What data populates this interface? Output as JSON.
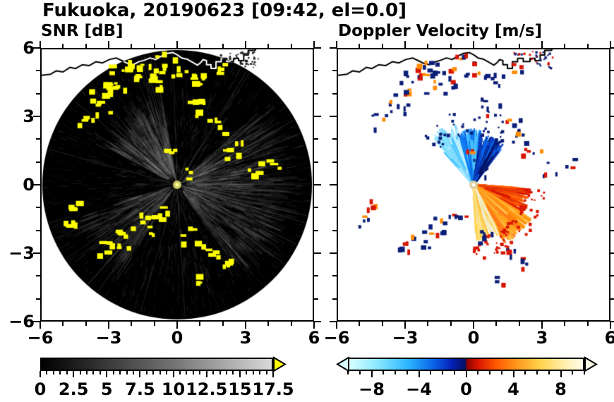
{
  "title": "Fukuoka, 20190623 [09:42, el=0.0]",
  "chart_data": {
    "type": "heatmap",
    "subtype": "dual-panel weather radar PPI",
    "site": "Fukuoka",
    "date": "20190623",
    "time": "09:42",
    "elevation": "el=0.0",
    "axes": {
      "xlim": [
        -6,
        6
      ],
      "ylim": [
        -6,
        6
      ],
      "xticks": [
        -6,
        -3,
        0,
        3,
        6
      ],
      "yticks": [
        -6,
        -3,
        0,
        3,
        6
      ],
      "tick_labels": [
        "−6",
        "−3",
        "0",
        "3",
        "6"
      ],
      "minor_tick_step": 1,
      "grid": false
    },
    "panels": [
      {
        "name": "snr",
        "title": "SNR [dB]",
        "style": "black disk of radius 6 centered on radar, grayscale noise texture, yellow blobs mark strong echoes, white coastline overlay",
        "colorbar": {
          "min": 0,
          "max": 17.5,
          "minor_step": 0.5,
          "tick_values": [
            0,
            2.5,
            5,
            7.5,
            10,
            12.5,
            15,
            17.5
          ],
          "tick_labels": [
            "0",
            "2.5",
            "5",
            "7.5",
            "10",
            "12.5",
            "15",
            "17.5"
          ],
          "stops": [
            {
              "pos": 0,
              "color": "#000000"
            },
            {
              "pos": 55,
              "color": "#6e6e6e"
            },
            {
              "pos": 100,
              "color": "#d9d9d9"
            }
          ],
          "arrow_left": false,
          "arrow_right": true,
          "over_color": "#ffff00"
        }
      },
      {
        "name": "velocity",
        "title": "Doppler Velocity [m/s]",
        "style": "white background, cyan-blue fan (negative, toward radar) pointing up, orange-yellow fan (positive, away) pointing down-right, navy/red folded speckles, black coastline",
        "colorbar": {
          "min": -10,
          "max": 10,
          "minor_step": 1,
          "tick_values": [
            -8,
            -4,
            0,
            4,
            8
          ],
          "tick_labels": [
            "−8",
            "−4",
            "0",
            "4",
            "8"
          ],
          "stops": [
            {
              "pos": 0,
              "color": "#d8ffff"
            },
            {
              "pos": 12,
              "color": "#8ae8ff"
            },
            {
              "pos": 25,
              "color": "#2bb7ff"
            },
            {
              "pos": 36,
              "color": "#0b62e8"
            },
            {
              "pos": 44,
              "color": "#0520b4"
            },
            {
              "pos": 49.7,
              "color": "#021060"
            },
            {
              "pos": 50.3,
              "color": "#8c0000"
            },
            {
              "pos": 55,
              "color": "#d81400"
            },
            {
              "pos": 63,
              "color": "#ff5a00"
            },
            {
              "pos": 72,
              "color": "#ff9a1e"
            },
            {
              "pos": 82,
              "color": "#ffd34d"
            },
            {
              "pos": 92,
              "color": "#ffeead"
            },
            {
              "pos": 100,
              "color": "#fffbe8"
            }
          ],
          "arrow_left": true,
          "arrow_right": true,
          "under_color": "#d8ffff",
          "over_color": "#fffbe8"
        }
      }
    ],
    "snr_echo_color": "#ffff00",
    "vel_colors": {
      "navy": "#0a1e78",
      "red": "#d81400",
      "orange": "#ff8c00"
    },
    "coastline": [
      [
        -6.0,
        4.85
      ],
      [
        -5.6,
        4.9
      ],
      [
        -5.35,
        5.05
      ],
      [
        -5.05,
        5.0
      ],
      [
        -4.75,
        5.2
      ],
      [
        -4.5,
        5.15
      ],
      [
        -4.2,
        5.32
      ],
      [
        -3.9,
        5.28
      ],
      [
        -3.6,
        5.45
      ],
      [
        -3.3,
        5.4
      ],
      [
        -3.0,
        5.55
      ],
      [
        -2.7,
        5.62
      ],
      [
        -2.45,
        5.5
      ],
      [
        -2.2,
        5.38
      ],
      [
        -1.95,
        5.32
      ],
      [
        -1.7,
        5.45
      ],
      [
        -1.45,
        5.52
      ],
      [
        -1.2,
        5.62
      ],
      [
        -0.95,
        5.55
      ],
      [
        -0.7,
        5.7
      ],
      [
        -0.45,
        5.82
      ],
      [
        -0.2,
        5.86
      ],
      [
        0.0,
        5.76
      ],
      [
        0.2,
        5.62
      ],
      [
        0.45,
        5.56
      ],
      [
        0.7,
        5.42
      ],
      [
        0.9,
        5.3
      ],
      [
        1.05,
        5.42
      ],
      [
        1.15,
        5.55
      ],
      [
        1.3,
        5.5
      ],
      [
        1.3,
        5.32
      ],
      [
        1.5,
        5.32
      ],
      [
        1.5,
        5.16
      ],
      [
        1.72,
        5.16
      ],
      [
        1.72,
        5.45
      ],
      [
        1.95,
        5.45
      ],
      [
        1.95,
        5.6
      ],
      [
        2.2,
        5.6
      ],
      [
        2.2,
        5.46
      ],
      [
        2.5,
        5.46
      ],
      [
        2.5,
        5.6
      ],
      [
        2.72,
        5.6
      ],
      [
        2.72,
        5.5
      ],
      [
        2.95,
        5.5
      ],
      [
        2.95,
        5.75
      ],
      [
        3.15,
        5.75
      ],
      [
        3.15,
        5.95
      ],
      [
        3.45,
        5.95
      ],
      [
        3.5,
        6.05
      ]
    ],
    "echo_clusters": [
      {
        "x": -2.3,
        "y": 4.6,
        "r": 0.7,
        "n": 14
      },
      {
        "x": -1.3,
        "y": 4.9,
        "r": 0.45,
        "n": 8
      },
      {
        "x": -0.4,
        "y": 5.3,
        "r": 0.5,
        "n": 7
      },
      {
        "x": 0.4,
        "y": 5.1,
        "r": 0.4,
        "n": 6
      },
      {
        "x": 1.1,
        "y": 4.5,
        "r": 0.35,
        "n": 5
      },
      {
        "x": -2.0,
        "y": 5.1,
        "r": 0.35,
        "n": 5
      },
      {
        "x": -1.0,
        "y": 4.3,
        "r": 0.3,
        "n": 4
      },
      {
        "x": -3.4,
        "y": 3.6,
        "r": 0.55,
        "n": 9
      },
      {
        "x": -4.1,
        "y": 2.8,
        "r": 0.4,
        "n": 5
      },
      {
        "x": -2.9,
        "y": 4.3,
        "r": 0.3,
        "n": 4
      },
      {
        "x": 0.8,
        "y": 3.4,
        "r": 0.45,
        "n": 6
      },
      {
        "x": 1.8,
        "y": 2.6,
        "r": 0.4,
        "n": 5
      },
      {
        "x": 2.6,
        "y": 1.5,
        "r": 0.45,
        "n": 6
      },
      {
        "x": 3.4,
        "y": 0.7,
        "r": 0.35,
        "n": 4
      },
      {
        "x": 4.35,
        "y": 0.9,
        "r": 0.25,
        "n": 3
      },
      {
        "x": -0.2,
        "y": 1.3,
        "r": 0.3,
        "n": 4
      },
      {
        "x": 0.5,
        "y": 0.5,
        "r": 0.25,
        "n": 3
      },
      {
        "x": -0.7,
        "y": -1.2,
        "r": 0.4,
        "n": 6
      },
      {
        "x": -1.5,
        "y": -1.8,
        "r": 0.45,
        "n": 7
      },
      {
        "x": -2.3,
        "y": -2.4,
        "r": 0.45,
        "n": 7
      },
      {
        "x": -3.1,
        "y": -2.9,
        "r": 0.35,
        "n": 5
      },
      {
        "x": -4.6,
        "y": -0.9,
        "r": 0.3,
        "n": 4
      },
      {
        "x": -4.75,
        "y": -1.6,
        "r": 0.3,
        "n": 4
      },
      {
        "x": 0.6,
        "y": -2.3,
        "r": 0.35,
        "n": 5
      },
      {
        "x": 1.5,
        "y": -3.0,
        "r": 0.35,
        "n": 5
      },
      {
        "x": 2.3,
        "y": -3.5,
        "r": 0.3,
        "n": 4
      },
      {
        "x": 1.1,
        "y": -4.2,
        "r": 0.25,
        "n": 3
      },
      {
        "x": 2.0,
        "y": 5.1,
        "r": 0.3,
        "n": 4
      }
    ],
    "snr_bright_sectors": [
      {
        "a0": -55,
        "a1": 42,
        "r0": 0.3,
        "r1": 4.6,
        "n": 900,
        "gray": 150,
        "alpha": 0.1
      },
      {
        "a0": 100,
        "a1": 152,
        "r0": 0.3,
        "r1": 3.4,
        "n": 430,
        "gray": 160,
        "alpha": 0.1
      },
      {
        "a0": 196,
        "a1": 238,
        "r0": 0.3,
        "r1": 4.3,
        "n": 330,
        "gray": 170,
        "alpha": 0.08
      }
    ],
    "vel_fans": [
      {
        "a0": 106,
        "a1": 132,
        "rmax": 2.9,
        "n": 230,
        "colors": [
          "#bdf0ff",
          "#7fd8ff",
          "#3ec3ff",
          "#8ae8ff"
        ]
      },
      {
        "a0": 82,
        "a1": 106,
        "rmax": 2.5,
        "n": 280,
        "colors": [
          "#2ea8ff",
          "#0f7ff0",
          "#0b62e8",
          "#49c3ff"
        ]
      },
      {
        "a0": 52,
        "a1": 82,
        "rmax": 2.3,
        "n": 280,
        "colors": [
          "#0a3fc0",
          "#06279a",
          "#021060",
          "#0b62e8"
        ]
      },
      {
        "a0": -30,
        "a1": -4,
        "rmax": 2.6,
        "n": 240,
        "colors": [
          "#ff5a00",
          "#e83800",
          "#ff7a1a",
          "#d81400"
        ]
      },
      {
        "a0": -62,
        "a1": -30,
        "rmax": 3.0,
        "n": 320,
        "colors": [
          "#ff8c00",
          "#ffa51f",
          "#ffc04a",
          "#ff7a1a"
        ]
      },
      {
        "a0": -88,
        "a1": -62,
        "rmax": 2.5,
        "n": 260,
        "colors": [
          "#ffd34d",
          "#ffe07a",
          "#f3ecc8",
          "#ffc04a"
        ]
      }
    ]
  }
}
